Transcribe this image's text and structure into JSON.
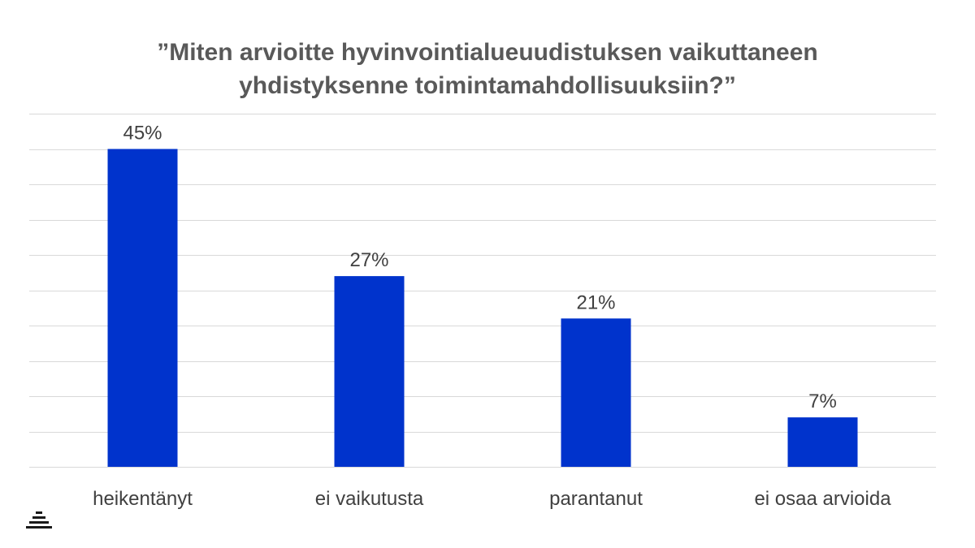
{
  "chart_data": {
    "type": "bar",
    "title_lines": [
      "”Miten arvioitte hyvinvointialueuudistuksen vaikuttaneen",
      "yhdistyksenne toimintamahdollisuuksiin?”"
    ],
    "categories": [
      "heikentänyt",
      "ei vaikutusta",
      "parantanut",
      "ei osaa arvioida"
    ],
    "values": [
      45,
      27,
      21,
      7
    ],
    "data_labels": [
      "45%",
      "27%",
      "21%",
      "7%"
    ],
    "ylim": [
      0,
      50
    ],
    "grid": true,
    "legend": "none",
    "colors": {
      "bar": "#0033CC",
      "grid": "#D9D9D9",
      "text": "#404040",
      "title": "#595959",
      "logo": "#1A1A1A"
    }
  }
}
